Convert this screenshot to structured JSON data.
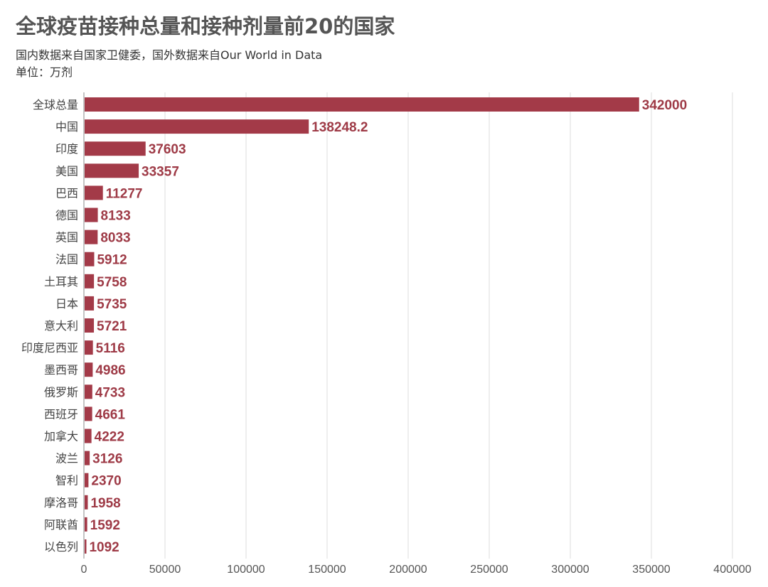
{
  "chart_data": {
    "type": "bar",
    "orientation": "horizontal",
    "title": "全球疫苗接种总量和接种剂量前20的国家",
    "subtitle": "国内数据来自国家卫健委，国外数据来自Our World in Data",
    "unit": "单位：万剂",
    "categories": [
      "全球总量",
      "中国",
      "印度",
      "美国",
      "巴西",
      "德国",
      "英国",
      "法国",
      "土耳其",
      "日本",
      "意大利",
      "印度尼西亚",
      "墨西哥",
      "俄罗斯",
      "西班牙",
      "加拿大",
      "波兰",
      "智利",
      "摩洛哥",
      "阿联酋",
      "以色列"
    ],
    "values": [
      342000,
      138248.2,
      37603,
      33357,
      11277,
      8133,
      8033,
      5912,
      5758,
      5735,
      5721,
      5116,
      4986,
      4733,
      4661,
      4222,
      3126,
      2370,
      1958,
      1592,
      1092
    ],
    "value_labels": [
      "342000",
      "138248.2",
      "37603",
      "33357",
      "11277",
      "8133",
      "8033",
      "5912",
      "5758",
      "5735",
      "5721",
      "5116",
      "4986",
      "4733",
      "4661",
      "4222",
      "3126",
      "2370",
      "1958",
      "1592",
      "1092"
    ],
    "xlim": [
      0,
      400000
    ],
    "xticks": [
      "0",
      "50000",
      "100000",
      "150000",
      "200000",
      "250000",
      "300000",
      "350000",
      "400000"
    ],
    "grid": true,
    "legend": "none",
    "bar_color": "#a33a48",
    "label_color": "#9e3a46"
  }
}
